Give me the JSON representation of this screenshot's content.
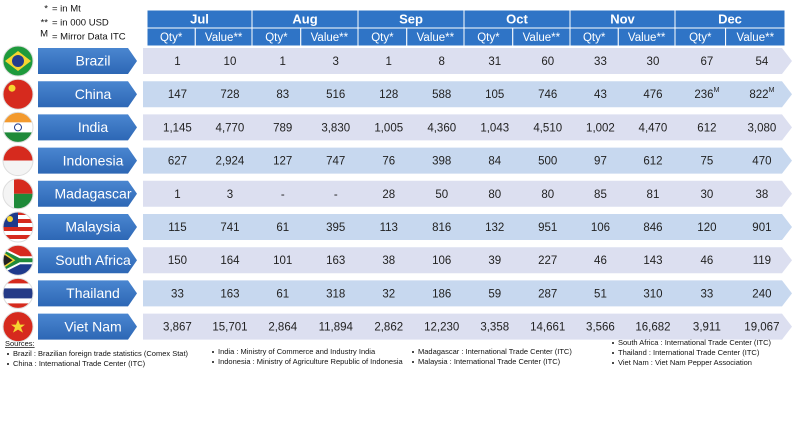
{
  "notes": [
    {
      "symbol": "*",
      "text": "= in Mt"
    },
    {
      "symbol": "**",
      "text": "= in 000 USD"
    },
    {
      "symbol": "M",
      "text": "= Mirror Data ITC"
    }
  ],
  "table": {
    "months": [
      "Jul",
      "Aug",
      "Sep",
      "Oct",
      "Nov",
      "Dec"
    ],
    "subheaders": [
      "Qty*",
      "Value**"
    ],
    "rows": [
      {
        "country": "Brazil",
        "cells": [
          "1",
          "10",
          "1",
          "3",
          "1",
          "8",
          "31",
          "60",
          "33",
          "30",
          "67",
          "54"
        ]
      },
      {
        "country": "China",
        "cells": [
          "147",
          "728",
          "83",
          "516",
          "128",
          "588",
          "105",
          "746",
          "43",
          "476",
          {
            "text": "236",
            "sup": "M"
          },
          {
            "text": "822",
            "sup": "M"
          }
        ]
      },
      {
        "country": "India",
        "cells": [
          "1,145",
          "4,770",
          "789",
          "3,830",
          "1,005",
          "4,360",
          "1,043",
          "4,510",
          "1,002",
          "4,470",
          "612",
          "3,080"
        ]
      },
      {
        "country": "Indonesia",
        "cells": [
          "627",
          "2,924",
          "127",
          "747",
          "76",
          "398",
          "84",
          "500",
          "97",
          "612",
          "75",
          "470"
        ]
      },
      {
        "country": "Madagascar",
        "cells": [
          "1",
          "3",
          "-",
          "-",
          "28",
          "50",
          "80",
          "80",
          "85",
          "81",
          "30",
          "38"
        ]
      },
      {
        "country": "Malaysia",
        "cells": [
          "115",
          "741",
          "61",
          "395",
          "113",
          "816",
          "132",
          "951",
          "106",
          "846",
          "120",
          "901"
        ]
      },
      {
        "country": "South Africa",
        "cells": [
          "150",
          "164",
          "101",
          "163",
          "38",
          "106",
          "39",
          "227",
          "46",
          "143",
          "46",
          "119"
        ]
      },
      {
        "country": "Thailand",
        "cells": [
          "33",
          "163",
          "61",
          "318",
          "32",
          "186",
          "59",
          "287",
          "51",
          "310",
          "33",
          "240"
        ]
      },
      {
        "country": "Viet Nam",
        "cells": [
          "3,867",
          "15,701",
          "2,864",
          "11,894",
          "2,862",
          "12,230",
          "3,358",
          "14,661",
          "3,566",
          "16,682",
          "3,911",
          "19,067"
        ]
      }
    ]
  },
  "sources": {
    "title": "Sources:",
    "items": [
      "Brazil : Brazilian foreign trade statistics (Comex Stat)",
      "China : International Trade Center (ITC)",
      "India : Ministry of Commerce and Industry India",
      "Indonesia : Ministry of Agriculture Republic of Indonesia",
      "Madagascar : International Trade Center (ITC)",
      "Malaysia : International Trade Center (ITC)",
      "South Africa : International Trade Center (ITC)",
      "Thailand : International Trade Center (ITC)",
      "Viet Nam : Viet Nam Pepper Association"
    ]
  }
}
